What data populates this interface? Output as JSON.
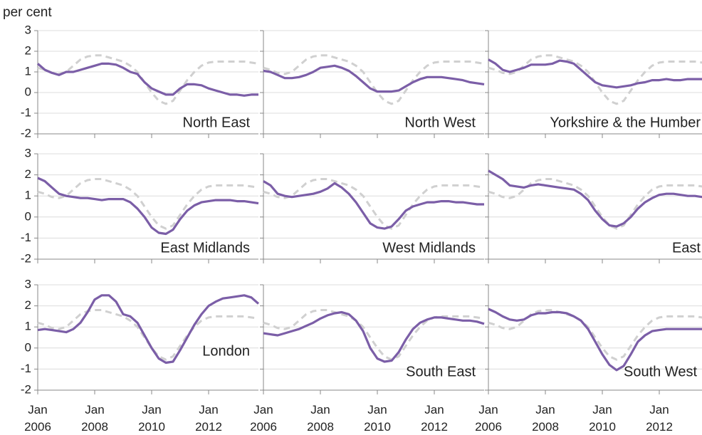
{
  "chart_data": {
    "type": "line",
    "ylabel": "per cent",
    "ylim": [
      -2,
      3
    ],
    "yticks": [
      -2,
      -1,
      0,
      1,
      2,
      3
    ],
    "xlim": [
      "2006-01",
      "2013-10"
    ],
    "xticks": [
      {
        "value": "2006-01",
        "label": "Jan 2006"
      },
      {
        "value": "2008-01",
        "label": "Jan 2008"
      },
      {
        "value": "2010-01",
        "label": "Jan 2010"
      },
      {
        "value": "2012-01",
        "label": "Jan 2012"
      }
    ],
    "grid": true,
    "x": [
      "2006-01",
      "2006-04",
      "2006-07",
      "2006-10",
      "2007-01",
      "2007-04",
      "2007-07",
      "2007-10",
      "2008-01",
      "2008-04",
      "2008-07",
      "2008-10",
      "2009-01",
      "2009-04",
      "2009-07",
      "2009-10",
      "2010-01",
      "2010-04",
      "2010-07",
      "2010-10",
      "2011-01",
      "2011-04",
      "2011-07",
      "2011-10",
      "2012-01",
      "2012-04",
      "2012-07",
      "2012-10",
      "2013-01",
      "2013-04",
      "2013-07",
      "2013-10"
    ],
    "panels": [
      {
        "title": "North East",
        "series": [
          {
            "color": "#d0d0d0",
            "dashed": true,
            "values": [
              1.2,
              1.1,
              0.95,
              0.9,
              1.0,
              1.3,
              1.6,
              1.75,
              1.8,
              1.8,
              1.7,
              1.6,
              1.5,
              1.3,
              1.0,
              0.5,
              0.0,
              -0.4,
              -0.55,
              -0.4,
              0.1,
              0.6,
              1.0,
              1.3,
              1.45,
              1.5,
              1.5,
              1.5,
              1.5,
              1.5,
              1.45,
              1.4
            ]
          },
          {
            "name": "North East",
            "color": "#7b5ea7",
            "values": [
              1.4,
              1.1,
              0.95,
              0.85,
              1.0,
              1.0,
              1.1,
              1.2,
              1.3,
              1.4,
              1.4,
              1.35,
              1.2,
              1.0,
              0.9,
              0.5,
              0.2,
              0.05,
              -0.1,
              -0.1,
              0.2,
              0.4,
              0.4,
              0.35,
              0.2,
              0.1,
              0.0,
              -0.1,
              -0.1,
              -0.15,
              -0.1,
              -0.1
            ]
          }
        ]
      },
      {
        "title": "North West",
        "series": [
          {
            "color": "#d0d0d0",
            "dashed": true,
            "values": [
              1.2,
              1.1,
              0.95,
              0.9,
              1.0,
              1.3,
              1.6,
              1.75,
              1.8,
              1.8,
              1.7,
              1.6,
              1.5,
              1.3,
              1.0,
              0.5,
              0.0,
              -0.4,
              -0.55,
              -0.4,
              0.1,
              0.6,
              1.0,
              1.3,
              1.45,
              1.5,
              1.5,
              1.5,
              1.5,
              1.5,
              1.45,
              1.4
            ]
          },
          {
            "name": "North West",
            "color": "#7b5ea7",
            "values": [
              1.05,
              1.0,
              0.85,
              0.7,
              0.7,
              0.75,
              0.85,
              1.0,
              1.2,
              1.25,
              1.3,
              1.2,
              1.05,
              0.8,
              0.5,
              0.2,
              0.05,
              0.05,
              0.05,
              0.1,
              0.3,
              0.5,
              0.65,
              0.75,
              0.75,
              0.75,
              0.7,
              0.65,
              0.6,
              0.5,
              0.45,
              0.4
            ]
          }
        ]
      },
      {
        "title": "Yorkshire & the Humber",
        "series": [
          {
            "color": "#d0d0d0",
            "dashed": true,
            "values": [
              1.2,
              1.1,
              0.95,
              0.9,
              1.0,
              1.3,
              1.6,
              1.75,
              1.8,
              1.8,
              1.7,
              1.6,
              1.5,
              1.3,
              1.0,
              0.5,
              0.0,
              -0.4,
              -0.55,
              -0.4,
              0.1,
              0.6,
              1.0,
              1.3,
              1.45,
              1.5,
              1.5,
              1.5,
              1.5,
              1.5,
              1.45,
              1.4
            ]
          },
          {
            "name": "Yorkshire & the Humber",
            "color": "#7b5ea7",
            "values": [
              1.6,
              1.4,
              1.1,
              1.0,
              1.1,
              1.2,
              1.35,
              1.35,
              1.35,
              1.4,
              1.55,
              1.5,
              1.4,
              1.1,
              0.8,
              0.5,
              0.35,
              0.3,
              0.25,
              0.3,
              0.35,
              0.45,
              0.5,
              0.6,
              0.6,
              0.65,
              0.6,
              0.6,
              0.65,
              0.65,
              0.65,
              0.65
            ]
          }
        ]
      },
      {
        "title": "East Midlands",
        "series": [
          {
            "color": "#d0d0d0",
            "dashed": true,
            "values": [
              1.2,
              1.1,
              0.95,
              0.9,
              1.0,
              1.3,
              1.6,
              1.75,
              1.8,
              1.8,
              1.7,
              1.6,
              1.5,
              1.3,
              1.0,
              0.5,
              0.0,
              -0.4,
              -0.55,
              -0.4,
              0.1,
              0.6,
              1.0,
              1.3,
              1.45,
              1.5,
              1.5,
              1.5,
              1.5,
              1.5,
              1.45,
              1.4
            ]
          },
          {
            "name": "East Midlands",
            "color": "#7b5ea7",
            "values": [
              1.85,
              1.7,
              1.4,
              1.1,
              1.0,
              0.95,
              0.9,
              0.9,
              0.85,
              0.8,
              0.85,
              0.85,
              0.85,
              0.7,
              0.4,
              0.0,
              -0.5,
              -0.75,
              -0.8,
              -0.6,
              -0.1,
              0.3,
              0.55,
              0.7,
              0.75,
              0.8,
              0.8,
              0.8,
              0.75,
              0.75,
              0.7,
              0.65
            ]
          }
        ]
      },
      {
        "title": "West Midlands",
        "series": [
          {
            "color": "#d0d0d0",
            "dashed": true,
            "values": [
              1.2,
              1.1,
              0.95,
              0.9,
              1.0,
              1.3,
              1.6,
              1.75,
              1.8,
              1.8,
              1.7,
              1.6,
              1.5,
              1.3,
              1.0,
              0.5,
              0.0,
              -0.4,
              -0.55,
              -0.4,
              0.1,
              0.6,
              1.0,
              1.3,
              1.45,
              1.5,
              1.5,
              1.5,
              1.5,
              1.5,
              1.45,
              1.4
            ]
          },
          {
            "name": "West Midlands",
            "color": "#7b5ea7",
            "values": [
              1.7,
              1.5,
              1.1,
              1.0,
              0.95,
              1.0,
              1.05,
              1.1,
              1.2,
              1.35,
              1.6,
              1.4,
              1.1,
              0.7,
              0.2,
              -0.3,
              -0.5,
              -0.55,
              -0.45,
              -0.1,
              0.3,
              0.5,
              0.6,
              0.7,
              0.7,
              0.75,
              0.75,
              0.7,
              0.7,
              0.65,
              0.6,
              0.6
            ]
          }
        ]
      },
      {
        "title": "East",
        "series": [
          {
            "color": "#d0d0d0",
            "dashed": true,
            "values": [
              1.2,
              1.1,
              0.95,
              0.9,
              1.0,
              1.3,
              1.6,
              1.75,
              1.8,
              1.8,
              1.7,
              1.6,
              1.5,
              1.3,
              1.0,
              0.5,
              0.0,
              -0.4,
              -0.55,
              -0.4,
              0.1,
              0.6,
              1.0,
              1.3,
              1.45,
              1.5,
              1.5,
              1.5,
              1.5,
              1.5,
              1.45,
              1.4
            ]
          },
          {
            "name": "East",
            "color": "#7b5ea7",
            "values": [
              2.2,
              2.0,
              1.8,
              1.5,
              1.45,
              1.4,
              1.5,
              1.55,
              1.5,
              1.45,
              1.4,
              1.35,
              1.3,
              1.1,
              0.8,
              0.3,
              -0.1,
              -0.4,
              -0.45,
              -0.3,
              0.0,
              0.4,
              0.7,
              0.9,
              1.05,
              1.1,
              1.1,
              1.05,
              1.0,
              1.0,
              0.95,
              0.9
            ]
          }
        ]
      },
      {
        "title": "London",
        "series": [
          {
            "color": "#d0d0d0",
            "dashed": true,
            "values": [
              1.2,
              1.1,
              0.95,
              0.9,
              1.0,
              1.3,
              1.6,
              1.75,
              1.8,
              1.8,
              1.7,
              1.6,
              1.5,
              1.3,
              1.0,
              0.5,
              0.0,
              -0.4,
              -0.55,
              -0.4,
              0.1,
              0.6,
              1.0,
              1.3,
              1.45,
              1.5,
              1.5,
              1.5,
              1.5,
              1.5,
              1.45,
              1.4
            ]
          },
          {
            "name": "London",
            "color": "#7b5ea7",
            "values": [
              0.85,
              0.9,
              0.85,
              0.8,
              0.75,
              0.9,
              1.2,
              1.7,
              2.3,
              2.5,
              2.5,
              2.2,
              1.6,
              1.5,
              1.2,
              0.6,
              0.0,
              -0.5,
              -0.7,
              -0.65,
              -0.1,
              0.5,
              1.1,
              1.6,
              2.0,
              2.2,
              2.35,
              2.4,
              2.45,
              2.5,
              2.4,
              2.1
            ]
          }
        ]
      },
      {
        "title": "South East",
        "series": [
          {
            "color": "#d0d0d0",
            "dashed": true,
            "values": [
              1.2,
              1.1,
              0.95,
              0.9,
              1.0,
              1.3,
              1.6,
              1.75,
              1.8,
              1.8,
              1.7,
              1.6,
              1.5,
              1.3,
              1.0,
              0.5,
              0.0,
              -0.4,
              -0.55,
              -0.4,
              0.1,
              0.6,
              1.0,
              1.3,
              1.45,
              1.5,
              1.5,
              1.5,
              1.5,
              1.5,
              1.45,
              1.4
            ]
          },
          {
            "name": "South East",
            "color": "#7b5ea7",
            "values": [
              0.7,
              0.65,
              0.6,
              0.7,
              0.8,
              0.9,
              1.05,
              1.2,
              1.4,
              1.55,
              1.65,
              1.7,
              1.6,
              1.3,
              0.8,
              0.0,
              -0.5,
              -0.65,
              -0.6,
              -0.2,
              0.4,
              0.9,
              1.2,
              1.35,
              1.45,
              1.45,
              1.4,
              1.35,
              1.3,
              1.3,
              1.25,
              1.15
            ]
          }
        ]
      },
      {
        "title": "South West",
        "series": [
          {
            "color": "#d0d0d0",
            "dashed": true,
            "values": [
              1.2,
              1.1,
              0.95,
              0.9,
              1.0,
              1.3,
              1.6,
              1.75,
              1.8,
              1.8,
              1.7,
              1.6,
              1.5,
              1.3,
              1.0,
              0.5,
              0.0,
              -0.4,
              -0.55,
              -0.4,
              0.1,
              0.6,
              1.0,
              1.3,
              1.45,
              1.5,
              1.5,
              1.5,
              1.5,
              1.5,
              1.45,
              1.4
            ]
          },
          {
            "name": "South West",
            "color": "#7b5ea7",
            "values": [
              1.85,
              1.7,
              1.5,
              1.35,
              1.3,
              1.35,
              1.55,
              1.65,
              1.65,
              1.7,
              1.7,
              1.65,
              1.5,
              1.3,
              0.9,
              0.3,
              -0.3,
              -0.8,
              -1.05,
              -0.85,
              -0.3,
              0.3,
              0.6,
              0.8,
              0.85,
              0.9,
              0.9,
              0.9,
              0.9,
              0.9,
              0.9,
              0.9
            ]
          }
        ]
      }
    ]
  }
}
